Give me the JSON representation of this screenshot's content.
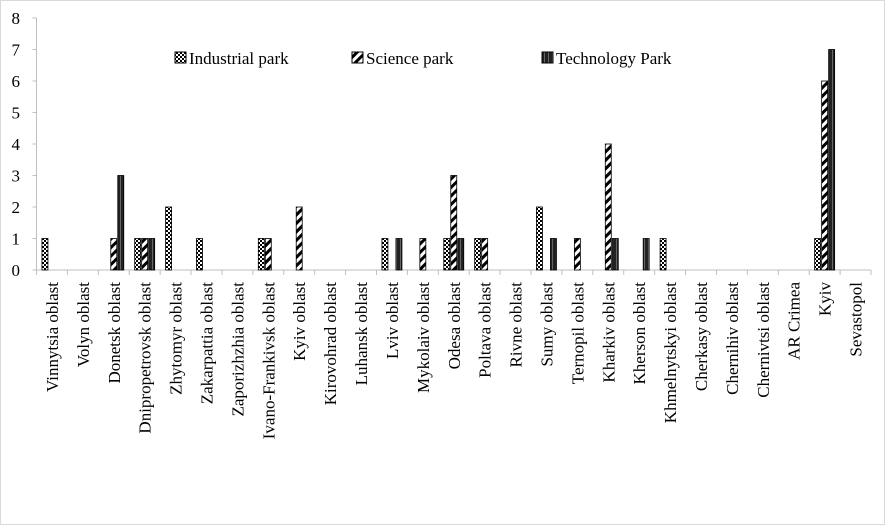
{
  "chart_data": {
    "type": "bar",
    "categories": [
      "Vinnytsia oblast",
      "Volyn oblast",
      "Donetsk oblast",
      "Dnipropetrovsk oblast",
      "Zhytomyr oblast",
      "Zakarpattia oblast",
      "Zaporizhzhia oblast",
      "Ivano-Frankivsk oblast",
      "Kyiv oblast",
      "Kirovohrad oblast",
      "Luhansk oblast",
      "Lviv oblast",
      "Mykolaiv oblast",
      "Odesa oblast",
      "Poltava oblast",
      "Rivne oblast",
      "Sumy oblast",
      "Ternopil oblast",
      "Kharkiv oblast",
      "Kherson oblast",
      "Khmelnytskyi oblast",
      "Cherkasy oblast",
      "Chernihiv oblast",
      "Chernivtsi oblast",
      "AR Crimea",
      "Kyiv",
      "Sevastopol"
    ],
    "series": [
      {
        "name": "Industrial park",
        "color": "#000000",
        "values": [
          1,
          0,
          0,
          1,
          2,
          1,
          0,
          1,
          0,
          0,
          0,
          1,
          0,
          1,
          1,
          0,
          2,
          0,
          0,
          0,
          1,
          0,
          0,
          0,
          0,
          1,
          0
        ]
      },
      {
        "name": "Science park",
        "color": "#000000",
        "values": [
          0,
          0,
          1,
          1,
          0,
          0,
          0,
          1,
          2,
          0,
          0,
          0,
          1,
          3,
          1,
          0,
          0,
          1,
          4,
          0,
          0,
          0,
          0,
          0,
          0,
          6,
          0
        ]
      },
      {
        "name": "Technology Park",
        "color": "#000000",
        "values": [
          0,
          0,
          3,
          1,
          0,
          0,
          0,
          0,
          0,
          0,
          0,
          1,
          0,
          1,
          0,
          0,
          1,
          0,
          1,
          1,
          0,
          0,
          0,
          0,
          0,
          7,
          0
        ]
      }
    ],
    "ylim": [
      0,
      8
    ],
    "yticks": [
      0,
      1,
      2,
      3,
      4,
      5,
      6,
      7,
      8
    ],
    "grid": false,
    "legend": "top"
  }
}
